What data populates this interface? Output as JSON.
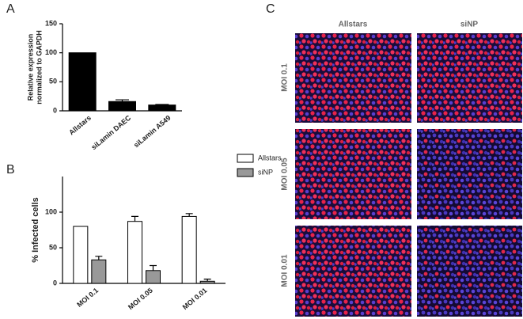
{
  "panel_labels": [
    "A",
    "B",
    "C"
  ],
  "chart_data": [
    {
      "type": "bar",
      "y_label": [
        "Relative expression",
        "normalized to GAPDH"
      ],
      "categories": [
        "Allstars",
        "siLamin DAEC",
        "siLamin A549"
      ],
      "values": [
        100,
        16,
        10
      ],
      "errors": [
        null,
        3,
        1
      ],
      "color": "#000000",
      "ylim": [
        0,
        150
      ],
      "yticks": [
        0,
        50,
        100,
        150
      ]
    },
    {
      "type": "grouped_bar",
      "y_label": "% Infected cells",
      "categories": [
        "MOI 0.1",
        "MOI 0.05",
        "MOI 0.01"
      ],
      "series": [
        {
          "name": "Allstars",
          "color": "#ffffff",
          "values": [
            80,
            87,
            94
          ],
          "errors": [
            null,
            7,
            4
          ]
        },
        {
          "name": "siNP",
          "color": "#999999",
          "values": [
            33,
            18,
            3
          ],
          "errors": [
            5,
            7,
            3
          ]
        }
      ],
      "ylim": [
        0,
        150
      ],
      "yticks": [
        0,
        50,
        100
      ]
    }
  ],
  "image_grid": {
    "columns": [
      "Allstars",
      "siNP"
    ],
    "rows": [
      "MOI 0.1",
      "MOI 0.05",
      "MOI 0.01"
    ]
  }
}
